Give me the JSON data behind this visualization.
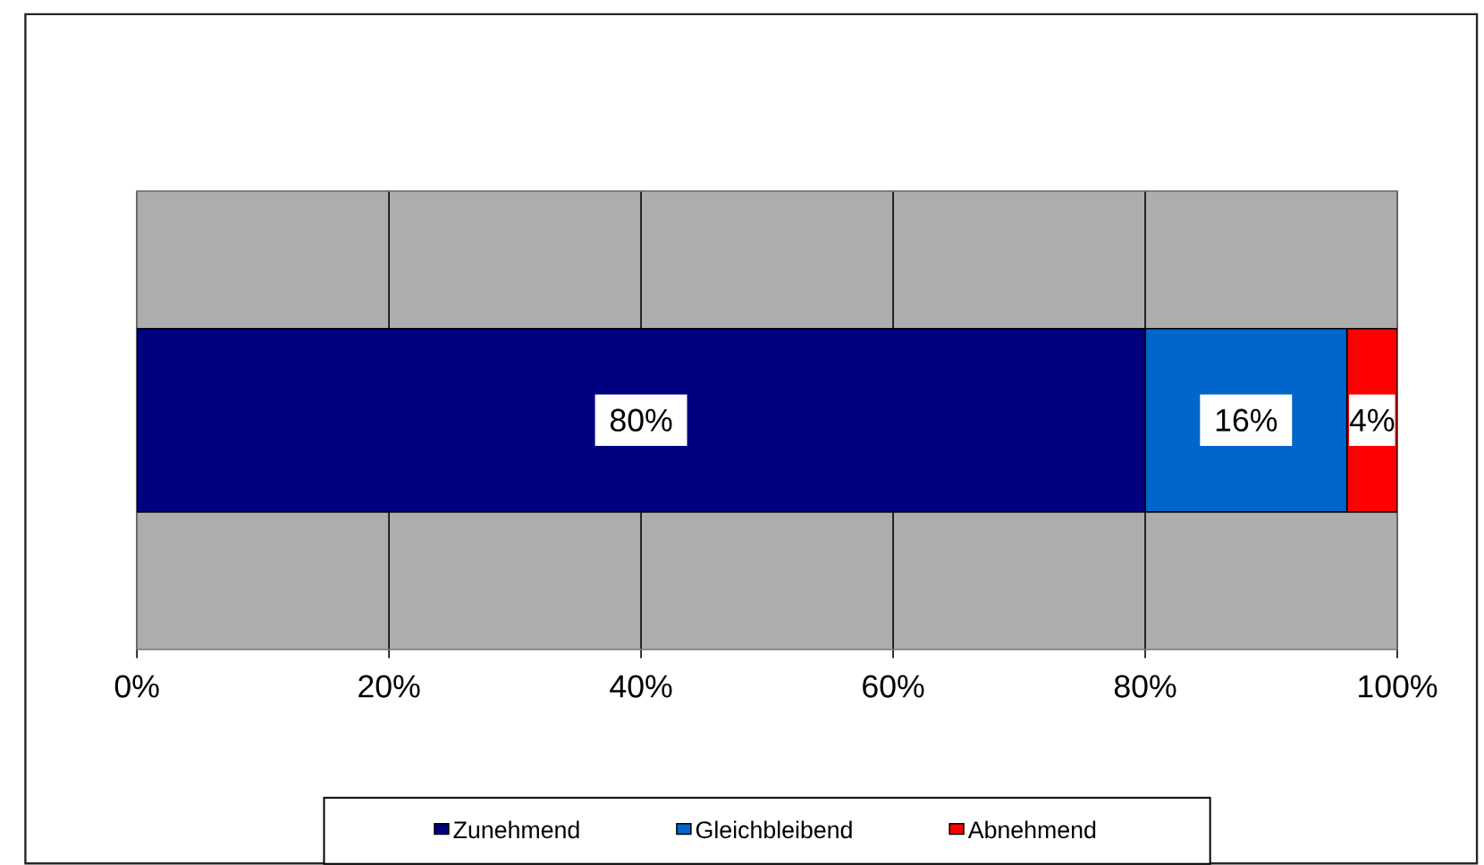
{
  "chart_data": {
    "type": "bar",
    "orientation": "horizontal",
    "stacked": true,
    "categories": [
      null
    ],
    "series": [
      {
        "name": "Zunehmend",
        "color": "#000080",
        "values": [
          80
        ],
        "value_labels": [
          "80%"
        ]
      },
      {
        "name": "Gleichbleibend",
        "color": "#0066cc",
        "values": [
          16
        ],
        "value_labels": [
          "16%"
        ]
      },
      {
        "name": "Abnehmend",
        "color": "#ff0000",
        "values": [
          4
        ],
        "value_labels": [
          "4%"
        ]
      }
    ],
    "xlim": [
      0,
      100
    ],
    "xticks": [
      {
        "value": 0,
        "label": "0%"
      },
      {
        "value": 20,
        "label": "20%"
      },
      {
        "value": 40,
        "label": "40%"
      },
      {
        "value": 60,
        "label": "60%"
      },
      {
        "value": 80,
        "label": "80%"
      },
      {
        "value": 100,
        "label": "100%"
      }
    ],
    "grid": "x",
    "legend": "bottom",
    "tick_labels": "x"
  }
}
